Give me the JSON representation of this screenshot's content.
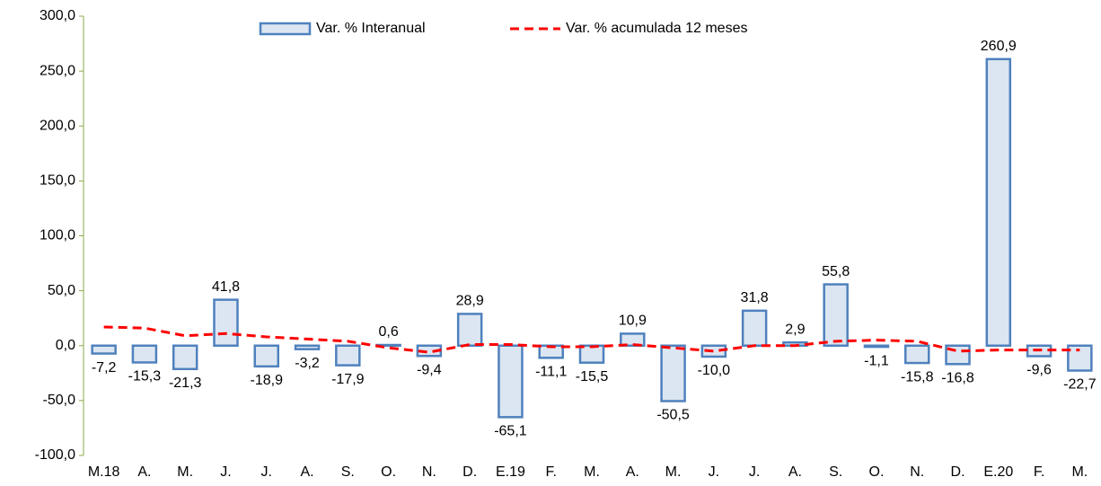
{
  "chart_data": {
    "type": "bar",
    "categories": [
      "M.18",
      "A.",
      "M.",
      "J.",
      "J.",
      "A.",
      "S.",
      "O.",
      "N.",
      "D.",
      "E.19",
      "F.",
      "M.",
      "A.",
      "M.",
      "J.",
      "J.",
      "A.",
      "S.",
      "O.",
      "N.",
      "D.",
      "E.20",
      "F.",
      "M."
    ],
    "series": [
      {
        "name": "Var. % Interanual",
        "type": "bar",
        "color": "#dce6f2",
        "edge_color": "#4f81bd",
        "values": [
          -7.2,
          -15.3,
          -21.3,
          41.8,
          -18.9,
          -3.2,
          -17.9,
          0.6,
          -9.4,
          28.9,
          -65.1,
          -11.1,
          -15.5,
          10.9,
          -50.5,
          -10.0,
          31.8,
          2.9,
          55.8,
          -1.1,
          -15.8,
          -16.8,
          260.9,
          -9.6,
          -22.7
        ],
        "value_labels": [
          "-7,2",
          "-15,3",
          "-21,3",
          "41,8",
          "-18,9",
          "-3,2",
          "-17,9",
          "0,6",
          "-9,4",
          "28,9",
          "-65,1",
          "-11,1",
          "-15,5",
          "10,9",
          "-50,5",
          "-10,0",
          "31,8",
          "2,9",
          "55,8",
          "-1,1",
          "-15,8",
          "-16,8",
          "260,9",
          "-9,6",
          "-22,7"
        ]
      },
      {
        "name": "Var. % acumulada 12 meses",
        "type": "line",
        "color": "#ff0000",
        "values": [
          17,
          16,
          9,
          11,
          8,
          6,
          4,
          -2,
          -6,
          1,
          1,
          -1,
          -1,
          1,
          -2,
          -5,
          0,
          0,
          4,
          5,
          4,
          -5,
          -4,
          -4,
          -4
        ]
      }
    ],
    "ylim": [
      -100,
      300
    ],
    "yticks": [
      {
        "value": -100,
        "label": "-100,0"
      },
      {
        "value": -50,
        "label": "-50,0"
      },
      {
        "value": 0,
        "label": "0,0"
      },
      {
        "value": 50,
        "label": "50,0"
      },
      {
        "value": 100,
        "label": "100,0"
      },
      {
        "value": 150,
        "label": "150,0"
      },
      {
        "value": 200,
        "label": "200,0"
      },
      {
        "value": 250,
        "label": "250,0"
      },
      {
        "value": 300,
        "label": "300,0"
      }
    ],
    "axis_color": "#8aa84a"
  }
}
